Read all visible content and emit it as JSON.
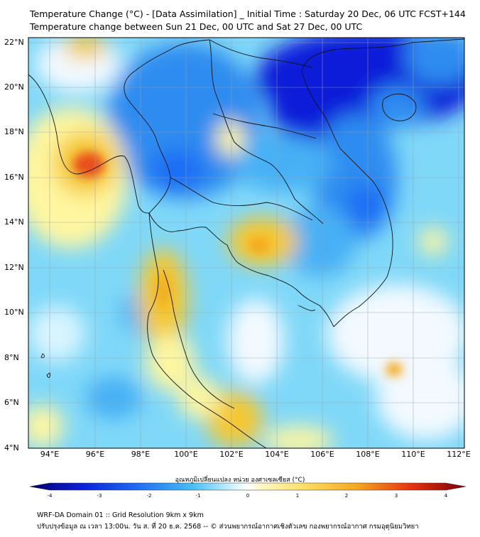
{
  "header": {
    "title_line1": "Temperature Change (°C) - [Data Assimilation] _ Initial Time : Saturday 20 Dec, 06 UTC FCST+144",
    "title_line2": "Temperature change between Sun 21 Dec, 00 UTC and Sat 27 Dec, 00 UTC"
  },
  "map": {
    "lat_labels": [
      "22°N",
      "20°N",
      "18°N",
      "16°N",
      "14°N",
      "12°N",
      "10°N",
      "8°N",
      "6°N",
      "4°N"
    ],
    "lon_labels": [
      "94°E",
      "96°E",
      "98°E",
      "100°E",
      "102°E",
      "104°E",
      "106°E",
      "108°E",
      "110°E",
      "112°E"
    ],
    "lat_range": [
      4,
      22.3
    ],
    "lon_range": [
      93,
      112.5
    ],
    "colors": {
      "strong_cool": "#0a1fd9",
      "cool": "#2f8cf0",
      "light_cool": "#7fd8f8",
      "neutral": "#f3f9ff",
      "light_warm": "#fff6a0",
      "warm": "#f5c830",
      "hot": "#e8501a"
    }
  },
  "colorbar": {
    "title": "อุณหภูมิเปลี่ยนแปลง หน่วย องศาเซลเซียส (°C)",
    "ticks": [
      "-4",
      "-3",
      "-2",
      "-1",
      "0",
      "1",
      "2",
      "3",
      "4"
    ],
    "range": [
      -4,
      4
    ]
  },
  "footer": {
    "line1": "WRF-DA Domain 01 :: Grid Resolution 9km x 9km",
    "line2": "ปรับปรุงข้อมูล ณ เวลา 13:00น. วัน ส. ที่ 20 ธ.ค. 2568 -- © ส่วนพยากรณ์อากาศเชิงตัวเลข กองพยากรณ์อากาศ กรมอุตุนิยมวิทยา"
  }
}
